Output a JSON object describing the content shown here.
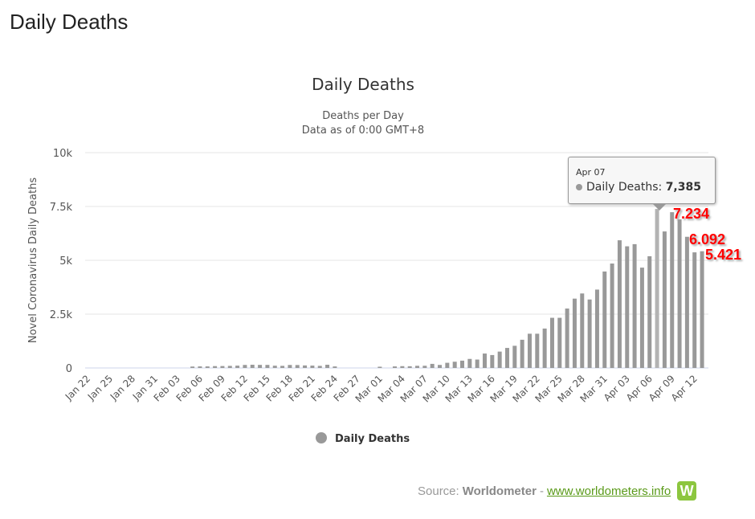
{
  "page_title": "Daily Deaths",
  "chart_data": {
    "type": "bar",
    "title": "Daily Deaths",
    "subtitle": [
      "Deaths per Day",
      "Data as of 0:00 GMT+8"
    ],
    "ylabel": "Novel Coronavirus Daily Deaths",
    "xlabel": "",
    "ylim": [
      0,
      10000
    ],
    "yticks": [
      {
        "v": 0,
        "label": "0"
      },
      {
        "v": 2500,
        "label": "2.5k"
      },
      {
        "v": 5000,
        "label": "5k"
      },
      {
        "v": 7500,
        "label": "7.5k"
      },
      {
        "v": 10000,
        "label": "10k"
      }
    ],
    "grid": true,
    "color": "#999999",
    "categories": [
      "Jan 22",
      "Jan 23",
      "Jan 24",
      "Jan 25",
      "Jan 26",
      "Jan 27",
      "Jan 28",
      "Jan 29",
      "Jan 30",
      "Jan 31",
      "Feb 01",
      "Feb 02",
      "Feb 03",
      "Feb 04",
      "Feb 05",
      "Feb 06",
      "Feb 07",
      "Feb 08",
      "Feb 09",
      "Feb 10",
      "Feb 11",
      "Feb 12",
      "Feb 13",
      "Feb 14",
      "Feb 15",
      "Feb 16",
      "Feb 17",
      "Feb 18",
      "Feb 19",
      "Feb 20",
      "Feb 21",
      "Feb 22",
      "Feb 23",
      "Feb 24",
      "Feb 25",
      "Feb 26",
      "Feb 27",
      "Feb 28",
      "Feb 29",
      "Mar 01",
      "Mar 02",
      "Mar 03",
      "Mar 04",
      "Mar 05",
      "Mar 06",
      "Mar 07",
      "Mar 08",
      "Mar 09",
      "Mar 10",
      "Mar 11",
      "Mar 12",
      "Mar 13",
      "Mar 14",
      "Mar 15",
      "Mar 16",
      "Mar 17",
      "Mar 18",
      "Mar 19",
      "Mar 20",
      "Mar 21",
      "Mar 22",
      "Mar 23",
      "Mar 24",
      "Mar 25",
      "Mar 26",
      "Mar 27",
      "Mar 28",
      "Mar 29",
      "Mar 30",
      "Mar 31",
      "Apr 01",
      "Apr 02",
      "Apr 03",
      "Apr 04",
      "Apr 05",
      "Apr 06",
      "Apr 07",
      "Apr 08",
      "Apr 09",
      "Apr 10",
      "Apr 11",
      "Apr 12",
      "Apr 13"
    ],
    "xtick_every": 3,
    "values": [
      0,
      0,
      0,
      0,
      0,
      0,
      0,
      0,
      0,
      0,
      0,
      0,
      0,
      0,
      66,
      73,
      73,
      86,
      89,
      97,
      108,
      140,
      150,
      143,
      142,
      105,
      98,
      139,
      136,
      118,
      109,
      97,
      150,
      71,
      0,
      0,
      0,
      0,
      0,
      58,
      0,
      72,
      84,
      80,
      100,
      102,
      190,
      140,
      240,
      290,
      340,
      420,
      390,
      670,
      600,
      760,
      930,
      1030,
      1310,
      1590,
      1590,
      1830,
      2330,
      2330,
      2760,
      3220,
      3460,
      3180,
      3640,
      4480,
      4850,
      5930,
      5650,
      5750,
      4660,
      5190,
      7385,
      6340,
      7234,
      6900,
      6092,
      5370,
      5421
    ],
    "series_name": "Daily Deaths",
    "legend": "bottom-center",
    "tooltip": {
      "date": "Apr 07",
      "label": "Daily Deaths:",
      "value": "7,385"
    },
    "annotations": [
      "7.234",
      "6.092",
      "5.421"
    ]
  },
  "footer": {
    "source_label": "Source:",
    "source_name": "Worldometer",
    "separator": "-",
    "link": "www.worldometers.info",
    "logo_letter": "W"
  }
}
